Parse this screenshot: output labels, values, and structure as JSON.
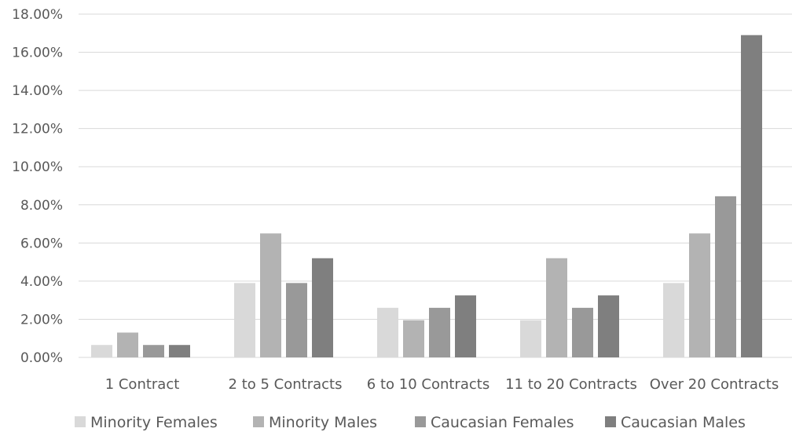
{
  "chart_data": {
    "type": "bar",
    "categories": [
      "1 Contract",
      "2 to 5 Contracts",
      "6 to 10 Contracts",
      "11 to 20 Contracts",
      "Over 20 Contracts"
    ],
    "series": [
      {
        "name": "Minority Females",
        "color": "#d9d9d9",
        "values": [
          0.65,
          3.9,
          2.6,
          1.95,
          3.9
        ]
      },
      {
        "name": "Minority Males",
        "color": "#b3b3b3",
        "values": [
          1.3,
          6.5,
          1.95,
          5.2,
          6.5
        ]
      },
      {
        "name": "Caucasian Females",
        "color": "#999999",
        "values": [
          0.65,
          3.9,
          2.6,
          2.6,
          8.45
        ]
      },
      {
        "name": "Caucasian Males",
        "color": "#7f7f7f",
        "values": [
          0.65,
          5.2,
          3.25,
          3.25,
          16.9
        ]
      }
    ],
    "yticks": [
      "0.00%",
      "2.00%",
      "4.00%",
      "6.00%",
      "8.00%",
      "10.00%",
      "12.00%",
      "14.00%",
      "16.00%",
      "18.00%"
    ],
    "ylim": [
      0,
      18
    ],
    "ytick_step": 2,
    "title": "",
    "xlabel": "",
    "ylabel": "",
    "grid": "horizontal",
    "legend_position": "bottom"
  }
}
